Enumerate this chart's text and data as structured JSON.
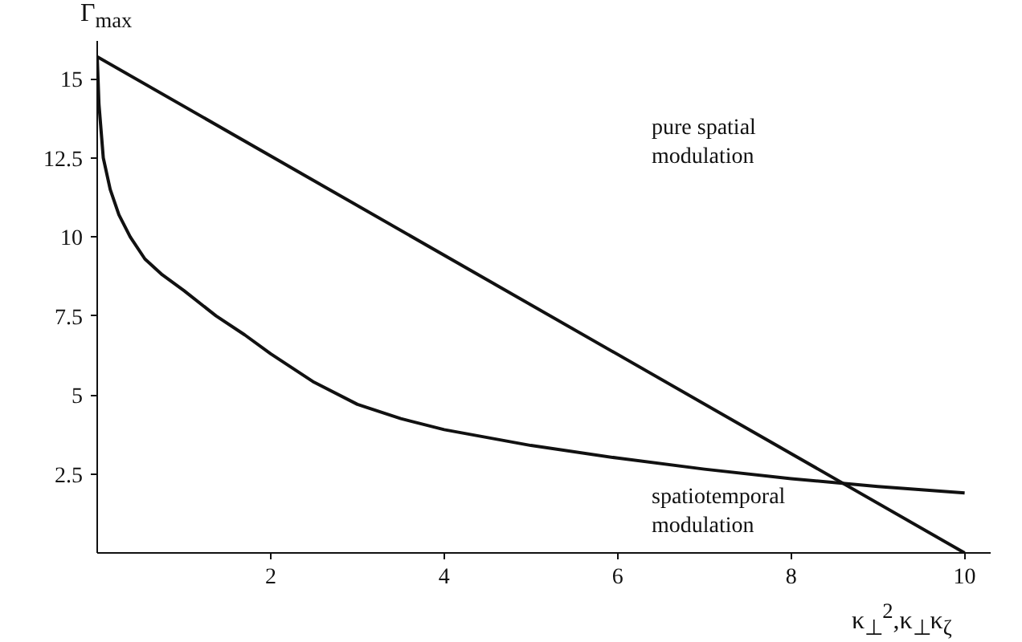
{
  "chart_data": {
    "type": "line",
    "xlabel": "κ$_{⊥}$$^{2}$,κ$_{⊥}$κ$_{ζ}$",
    "ylabel": "Γ$_{max}$",
    "xlim": [
      0,
      10.3
    ],
    "ylim": [
      0,
      16.2
    ],
    "xticks": [
      2,
      4,
      6,
      8,
      10
    ],
    "yticks": [
      2.5,
      5,
      7.5,
      10,
      12.5,
      15
    ],
    "grid": false,
    "marker": "none",
    "line_style": "solid",
    "series": [
      {
        "color": "#111111",
        "x": [
          0,
          10
        ],
        "values": [
          15.7,
          0
        ]
      },
      {
        "color": "#111111",
        "x": [
          0,
          0.02,
          0.07,
          0.15,
          0.25,
          0.38,
          0.55,
          0.75,
          1.0,
          1.37,
          1.7,
          2.0,
          2.5,
          3.0,
          3.5,
          4.0,
          5.0,
          6.0,
          7.0,
          8.0,
          9.0,
          10.0
        ],
        "values": [
          15.7,
          14.2,
          12.5,
          11.5,
          10.7,
          10.0,
          9.3,
          8.8,
          8.3,
          7.5,
          6.9,
          6.3,
          5.4,
          4.7,
          4.25,
          3.9,
          3.4,
          3.0,
          2.65,
          2.35,
          2.1,
          1.9
        ]
      }
    ],
    "annotations": [
      "pure spatial\nmodulation",
      "spatiotemporal\nmodulation"
    ]
  }
}
